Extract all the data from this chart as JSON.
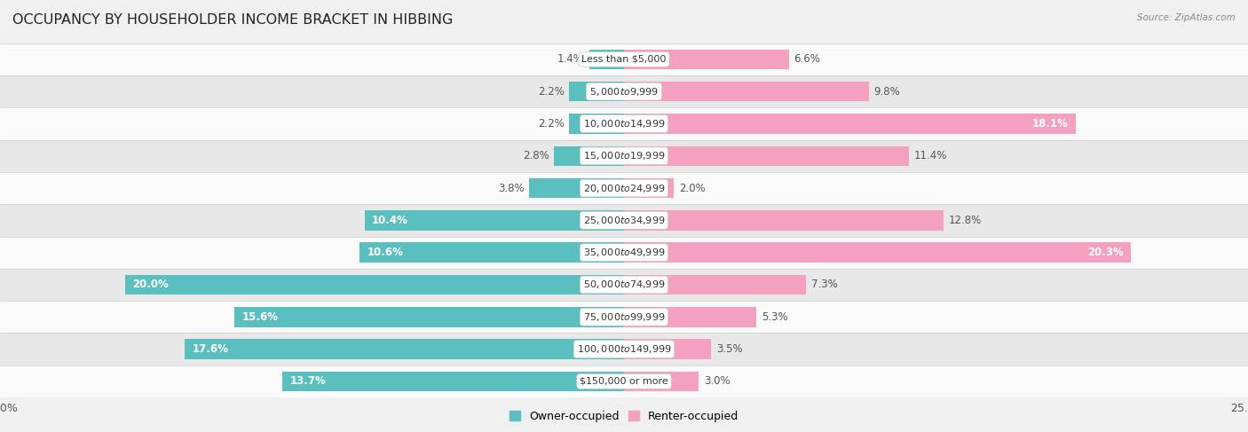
{
  "title": "OCCUPANCY BY HOUSEHOLDER INCOME BRACKET IN HIBBING",
  "source": "Source: ZipAtlas.com",
  "categories": [
    "Less than $5,000",
    "$5,000 to $9,999",
    "$10,000 to $14,999",
    "$15,000 to $19,999",
    "$20,000 to $24,999",
    "$25,000 to $34,999",
    "$35,000 to $49,999",
    "$50,000 to $74,999",
    "$75,000 to $99,999",
    "$100,000 to $149,999",
    "$150,000 or more"
  ],
  "owner_values": [
    1.4,
    2.2,
    2.2,
    2.8,
    3.8,
    10.4,
    10.6,
    20.0,
    15.6,
    17.6,
    13.7
  ],
  "renter_values": [
    6.6,
    9.8,
    18.1,
    11.4,
    2.0,
    12.8,
    20.3,
    7.3,
    5.3,
    3.5,
    3.0
  ],
  "owner_color": "#5bbfbf",
  "renter_color": "#f4a0c0",
  "bar_height": 0.62,
  "xlim": 25.0,
  "background_color": "#f0f0f0",
  "row_bg_light": "#fafafa",
  "row_bg_dark": "#e8e8e8",
  "title_fontsize": 11.5,
  "label_fontsize": 8.5,
  "category_fontsize": 8.0,
  "axis_label_fontsize": 9,
  "owner_label_inside_threshold": 8.0,
  "renter_label_inside_threshold": 17.0
}
